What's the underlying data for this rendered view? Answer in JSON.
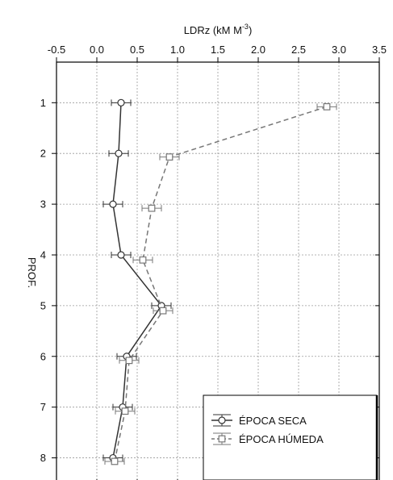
{
  "chart_data": {
    "type": "line",
    "title": "",
    "x_axis": {
      "label_main": "LDRz (kM M",
      "label_sup": "-3",
      "label_end": ")",
      "position": "top",
      "range": [
        -0.5,
        3.5
      ],
      "ticks": [
        -0.5,
        0.0,
        0.5,
        1.0,
        1.5,
        2.0,
        2.5,
        3.0,
        3.5
      ],
      "tick_labels": [
        "-0.5",
        "0.0",
        "0.5",
        "1.0",
        "1.5",
        "2.0",
        "2.5",
        "3.0",
        "3.5"
      ]
    },
    "y_axis": {
      "label": "PROF.",
      "range": [
        0.2,
        8.5
      ],
      "inverted": true,
      "ticks": [
        1,
        2,
        3,
        4,
        5,
        6,
        7,
        8
      ],
      "tick_labels": [
        "1",
        "2",
        "3",
        "4",
        "5",
        "6",
        "7",
        "8"
      ]
    },
    "grid": true,
    "legend": {
      "placement": "bottom-right",
      "entries": [
        "ÉPOCA SECA",
        "ÉPOCA HÚMEDA"
      ]
    },
    "series": [
      {
        "name": "ÉPOCA SECA",
        "style": "solid",
        "marker": "circle",
        "color": "#333333",
        "points": [
          {
            "y": 1,
            "x": 0.3,
            "err": 0.12
          },
          {
            "y": 2,
            "x": 0.27,
            "err": 0.12
          },
          {
            "y": 3,
            "x": 0.2,
            "err": 0.12
          },
          {
            "y": 4,
            "x": 0.3,
            "err": 0.12
          },
          {
            "y": 5,
            "x": 0.8,
            "err": 0.12
          },
          {
            "y": 6,
            "x": 0.37,
            "err": 0.12
          },
          {
            "y": 7,
            "x": 0.32,
            "err": 0.12
          },
          {
            "y": 8,
            "x": 0.2,
            "err": 0.12
          }
        ]
      },
      {
        "name": "ÉPOCA HÚMEDA",
        "style": "dashed",
        "marker": "square",
        "color": "#777777",
        "points": [
          {
            "y": 1.08,
            "x": 2.85,
            "err": 0.12
          },
          {
            "y": 2.07,
            "x": 0.9,
            "err": 0.12
          },
          {
            "y": 3.08,
            "x": 0.68,
            "err": 0.12
          },
          {
            "y": 4.1,
            "x": 0.57,
            "err": 0.12
          },
          {
            "y": 5.1,
            "x": 0.82,
            "err": 0.12
          },
          {
            "y": 6.08,
            "x": 0.4,
            "err": 0.12
          },
          {
            "y": 7.08,
            "x": 0.35,
            "err": 0.12
          },
          {
            "y": 8.07,
            "x": 0.22,
            "err": 0.12
          }
        ]
      }
    ]
  }
}
